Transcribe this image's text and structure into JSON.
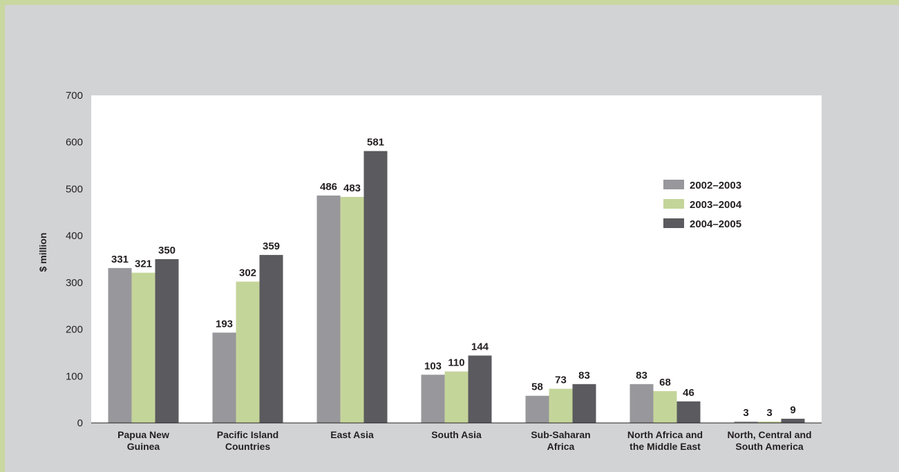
{
  "chart_data": {
    "type": "bar",
    "ylabel": "$ million",
    "ylim": [
      0,
      700
    ],
    "yticks": [
      0,
      100,
      200,
      300,
      400,
      500,
      600,
      700
    ],
    "categories": [
      [
        "Papua New",
        "Guinea"
      ],
      [
        "Pacific Island",
        "Countries"
      ],
      [
        "East Asia"
      ],
      [
        "South Asia"
      ],
      [
        "Sub-Saharan",
        "Africa"
      ],
      [
        "North Africa and",
        "the Middle East"
      ],
      [
        "North, Central and",
        "South America"
      ]
    ],
    "series": [
      {
        "name": "2002–2003",
        "color": "#98979c",
        "values": [
          331,
          193,
          486,
          103,
          58,
          83,
          3
        ]
      },
      {
        "name": "2003–2004",
        "color": "#c4d59a",
        "values": [
          321,
          302,
          483,
          110,
          73,
          68,
          3
        ]
      },
      {
        "name": "2004–2005",
        "color": "#5a5a5f",
        "values": [
          350,
          359,
          581,
          144,
          83,
          46,
          9
        ]
      }
    ],
    "legend_position": "top-right",
    "grid": false
  }
}
